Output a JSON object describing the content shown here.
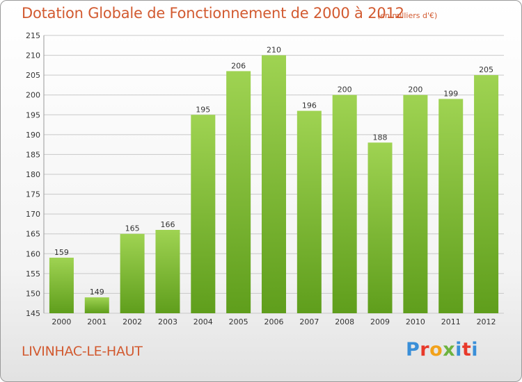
{
  "header": {
    "title": "Dotation Globale de Fonctionnement de 2000 à 2012",
    "unit": "(en milliers d'€)"
  },
  "footer": {
    "commune": "LIVINHAC-LE-HAUT",
    "logo_text": "Proxiti"
  },
  "colors": {
    "title": "#d25a30",
    "bar_top": "#9fd352",
    "bar_bottom": "#5f9e1c",
    "grid": "#c8c8c8"
  },
  "chart_data": {
    "type": "bar",
    "categories": [
      "2000",
      "2001",
      "2002",
      "2003",
      "2004",
      "2005",
      "2006",
      "2007",
      "2008",
      "2009",
      "2010",
      "2011",
      "2012"
    ],
    "values": [
      159,
      149,
      165,
      166,
      195,
      206,
      210,
      196,
      200,
      188,
      200,
      199,
      205
    ],
    "ylim": [
      145,
      215
    ],
    "yticks": [
      145,
      150,
      155,
      160,
      165,
      170,
      175,
      180,
      185,
      190,
      195,
      200,
      205,
      210,
      215
    ],
    "grid": true,
    "data_labels": true
  }
}
